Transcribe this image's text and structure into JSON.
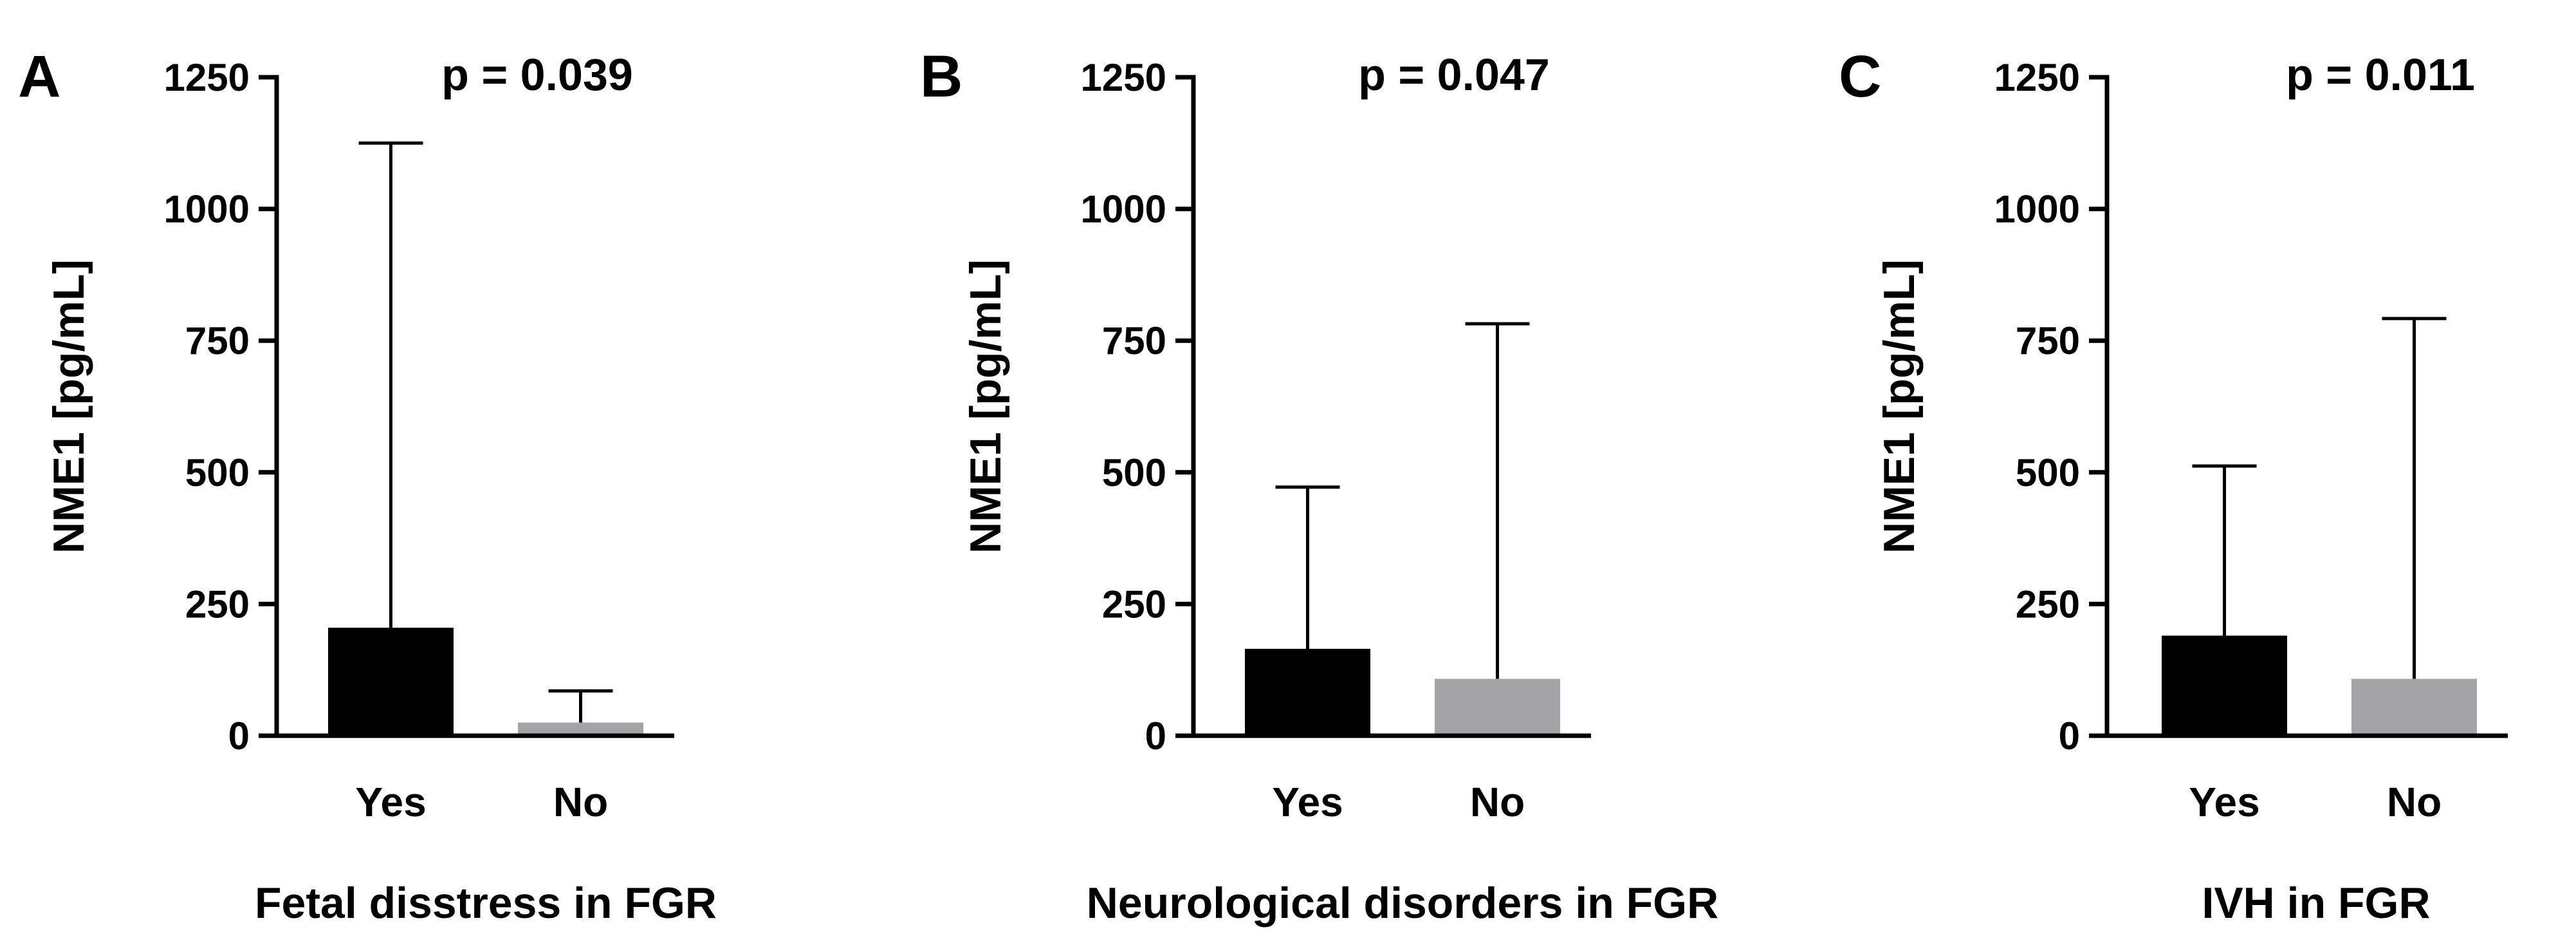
{
  "chart_data": [
    {
      "type": "bar",
      "panel_label": "A",
      "categories": [
        "Yes",
        "No"
      ],
      "values": [
        205,
        25
      ],
      "error_upper": [
        1125,
        85
      ],
      "annotation": "p = 0.039",
      "xlabel": "Fetal disstress in FGR",
      "ylabel": "NME1 [pg/mL]",
      "ylim": [
        0,
        1250
      ],
      "yticks": [
        "0",
        "250",
        "500",
        "750",
        "1000",
        "1250"
      ],
      "grid": false,
      "legend": "none",
      "colors": [
        "#000000",
        "#a3a3a8"
      ]
    },
    {
      "type": "bar",
      "panel_label": "B",
      "categories": [
        "Yes",
        "No"
      ],
      "values": [
        165,
        108
      ],
      "error_upper": [
        472,
        782
      ],
      "annotation": "p = 0.047",
      "xlabel": "Neurological disorders in FGR",
      "ylabel": "NME1 [pg/mL]",
      "ylim": [
        0,
        1250
      ],
      "yticks": [
        "0",
        "250",
        "500",
        "750",
        "1000",
        "1250"
      ],
      "grid": false,
      "legend": "none",
      "colors": [
        "#000000",
        "#a3a3a8"
      ]
    },
    {
      "type": "bar",
      "panel_label": "C",
      "categories": [
        "Yes",
        "No"
      ],
      "values": [
        190,
        108
      ],
      "error_upper": [
        512,
        792
      ],
      "annotation": "p = 0.011",
      "xlabel": "IVH in FGR",
      "ylabel": "NME1 [pg/mL]",
      "ylim": [
        0,
        1250
      ],
      "yticks": [
        "0",
        "250",
        "500",
        "750",
        "1000",
        "1250"
      ],
      "grid": false,
      "legend": "none",
      "colors": [
        "#000000",
        "#a3a3a8"
      ]
    }
  ]
}
